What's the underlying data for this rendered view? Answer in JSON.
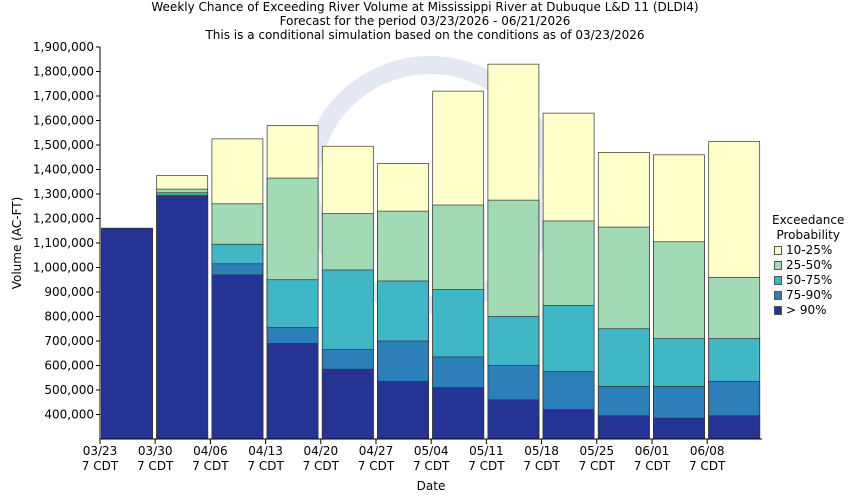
{
  "chart_data": {
    "type": "bar",
    "stacked": true,
    "title": "Weekly Chance of Exceeding River Volume at Mississippi River at Dubuque L&D 11 (DLDI4)",
    "subtitle": "Forecast for the period 03/23/2026 - 06/21/2026",
    "subtitle2": "This is a conditional simulation based on the conditions as of 03/23/2026",
    "xlabel": "Date",
    "ylabel": "Volume (AC-FT)",
    "ylim": [
      300000,
      1900000
    ],
    "y_ticks": [
      400000,
      500000,
      600000,
      700000,
      800000,
      900000,
      1000000,
      1100000,
      1200000,
      1300000,
      1400000,
      1500000,
      1600000,
      1700000,
      1800000,
      1900000
    ],
    "y_tick_labels": [
      "400,000",
      "500,000",
      "600,000",
      "700,000",
      "800,000",
      "900,000",
      "1,000,000",
      "1,100,000",
      "1,200,000",
      "1,300,000",
      "1,400,000",
      "1,500,000",
      "1,600,000",
      "1,700,000",
      "1,800,000",
      "1,900,000"
    ],
    "x_ticks": [
      {
        "date": "03/23",
        "tz": "7 CDT"
      },
      {
        "date": "03/30",
        "tz": "7 CDT"
      },
      {
        "date": "04/06",
        "tz": "7 CDT"
      },
      {
        "date": "04/13",
        "tz": "7 CDT"
      },
      {
        "date": "04/20",
        "tz": "7 CDT"
      },
      {
        "date": "04/27",
        "tz": "7 CDT"
      },
      {
        "date": "05/04",
        "tz": "7 CDT"
      },
      {
        "date": "05/11",
        "tz": "7 CDT"
      },
      {
        "date": "05/18",
        "tz": "7 CDT"
      },
      {
        "date": "05/25",
        "tz": "7 CDT"
      },
      {
        "date": "06/01",
        "tz": "7 CDT"
      },
      {
        "date": "06/08",
        "tz": "7 CDT"
      }
    ],
    "legend_title": [
      "Exceedance",
      "Probability"
    ],
    "legend_position": "right",
    "grid": false,
    "series": [
      {
        "name": "10-25%",
        "color": "#ffffcc",
        "top": [
          1160000,
          1375000,
          1525000,
          1580000,
          1495000,
          1425000,
          1720000,
          1830000,
          1630000,
          1470000,
          1460000,
          1515000
        ]
      },
      {
        "name": "25-50%",
        "color": "#a1dab4",
        "top": [
          1160000,
          1320000,
          1260000,
          1365000,
          1220000,
          1230000,
          1255000,
          1275000,
          1190000,
          1165000,
          1105000,
          960000
        ]
      },
      {
        "name": "50-75%",
        "color": "#41b6c4",
        "top": [
          1160000,
          1305000,
          1095000,
          950000,
          990000,
          945000,
          910000,
          800000,
          845000,
          750000,
          710000,
          710000
        ]
      },
      {
        "name": "75-90%",
        "color": "#2c7fb8",
        "top": [
          1160000,
          1295000,
          1015000,
          755000,
          665000,
          700000,
          635000,
          600000,
          575000,
          515000,
          515000,
          535000
        ]
      },
      {
        "name": "> 90%",
        "color": "#253494",
        "top": [
          1160000,
          1290000,
          970000,
          690000,
          585000,
          535000,
          510000,
          460000,
          420000,
          395000,
          385000,
          395000
        ]
      }
    ]
  }
}
